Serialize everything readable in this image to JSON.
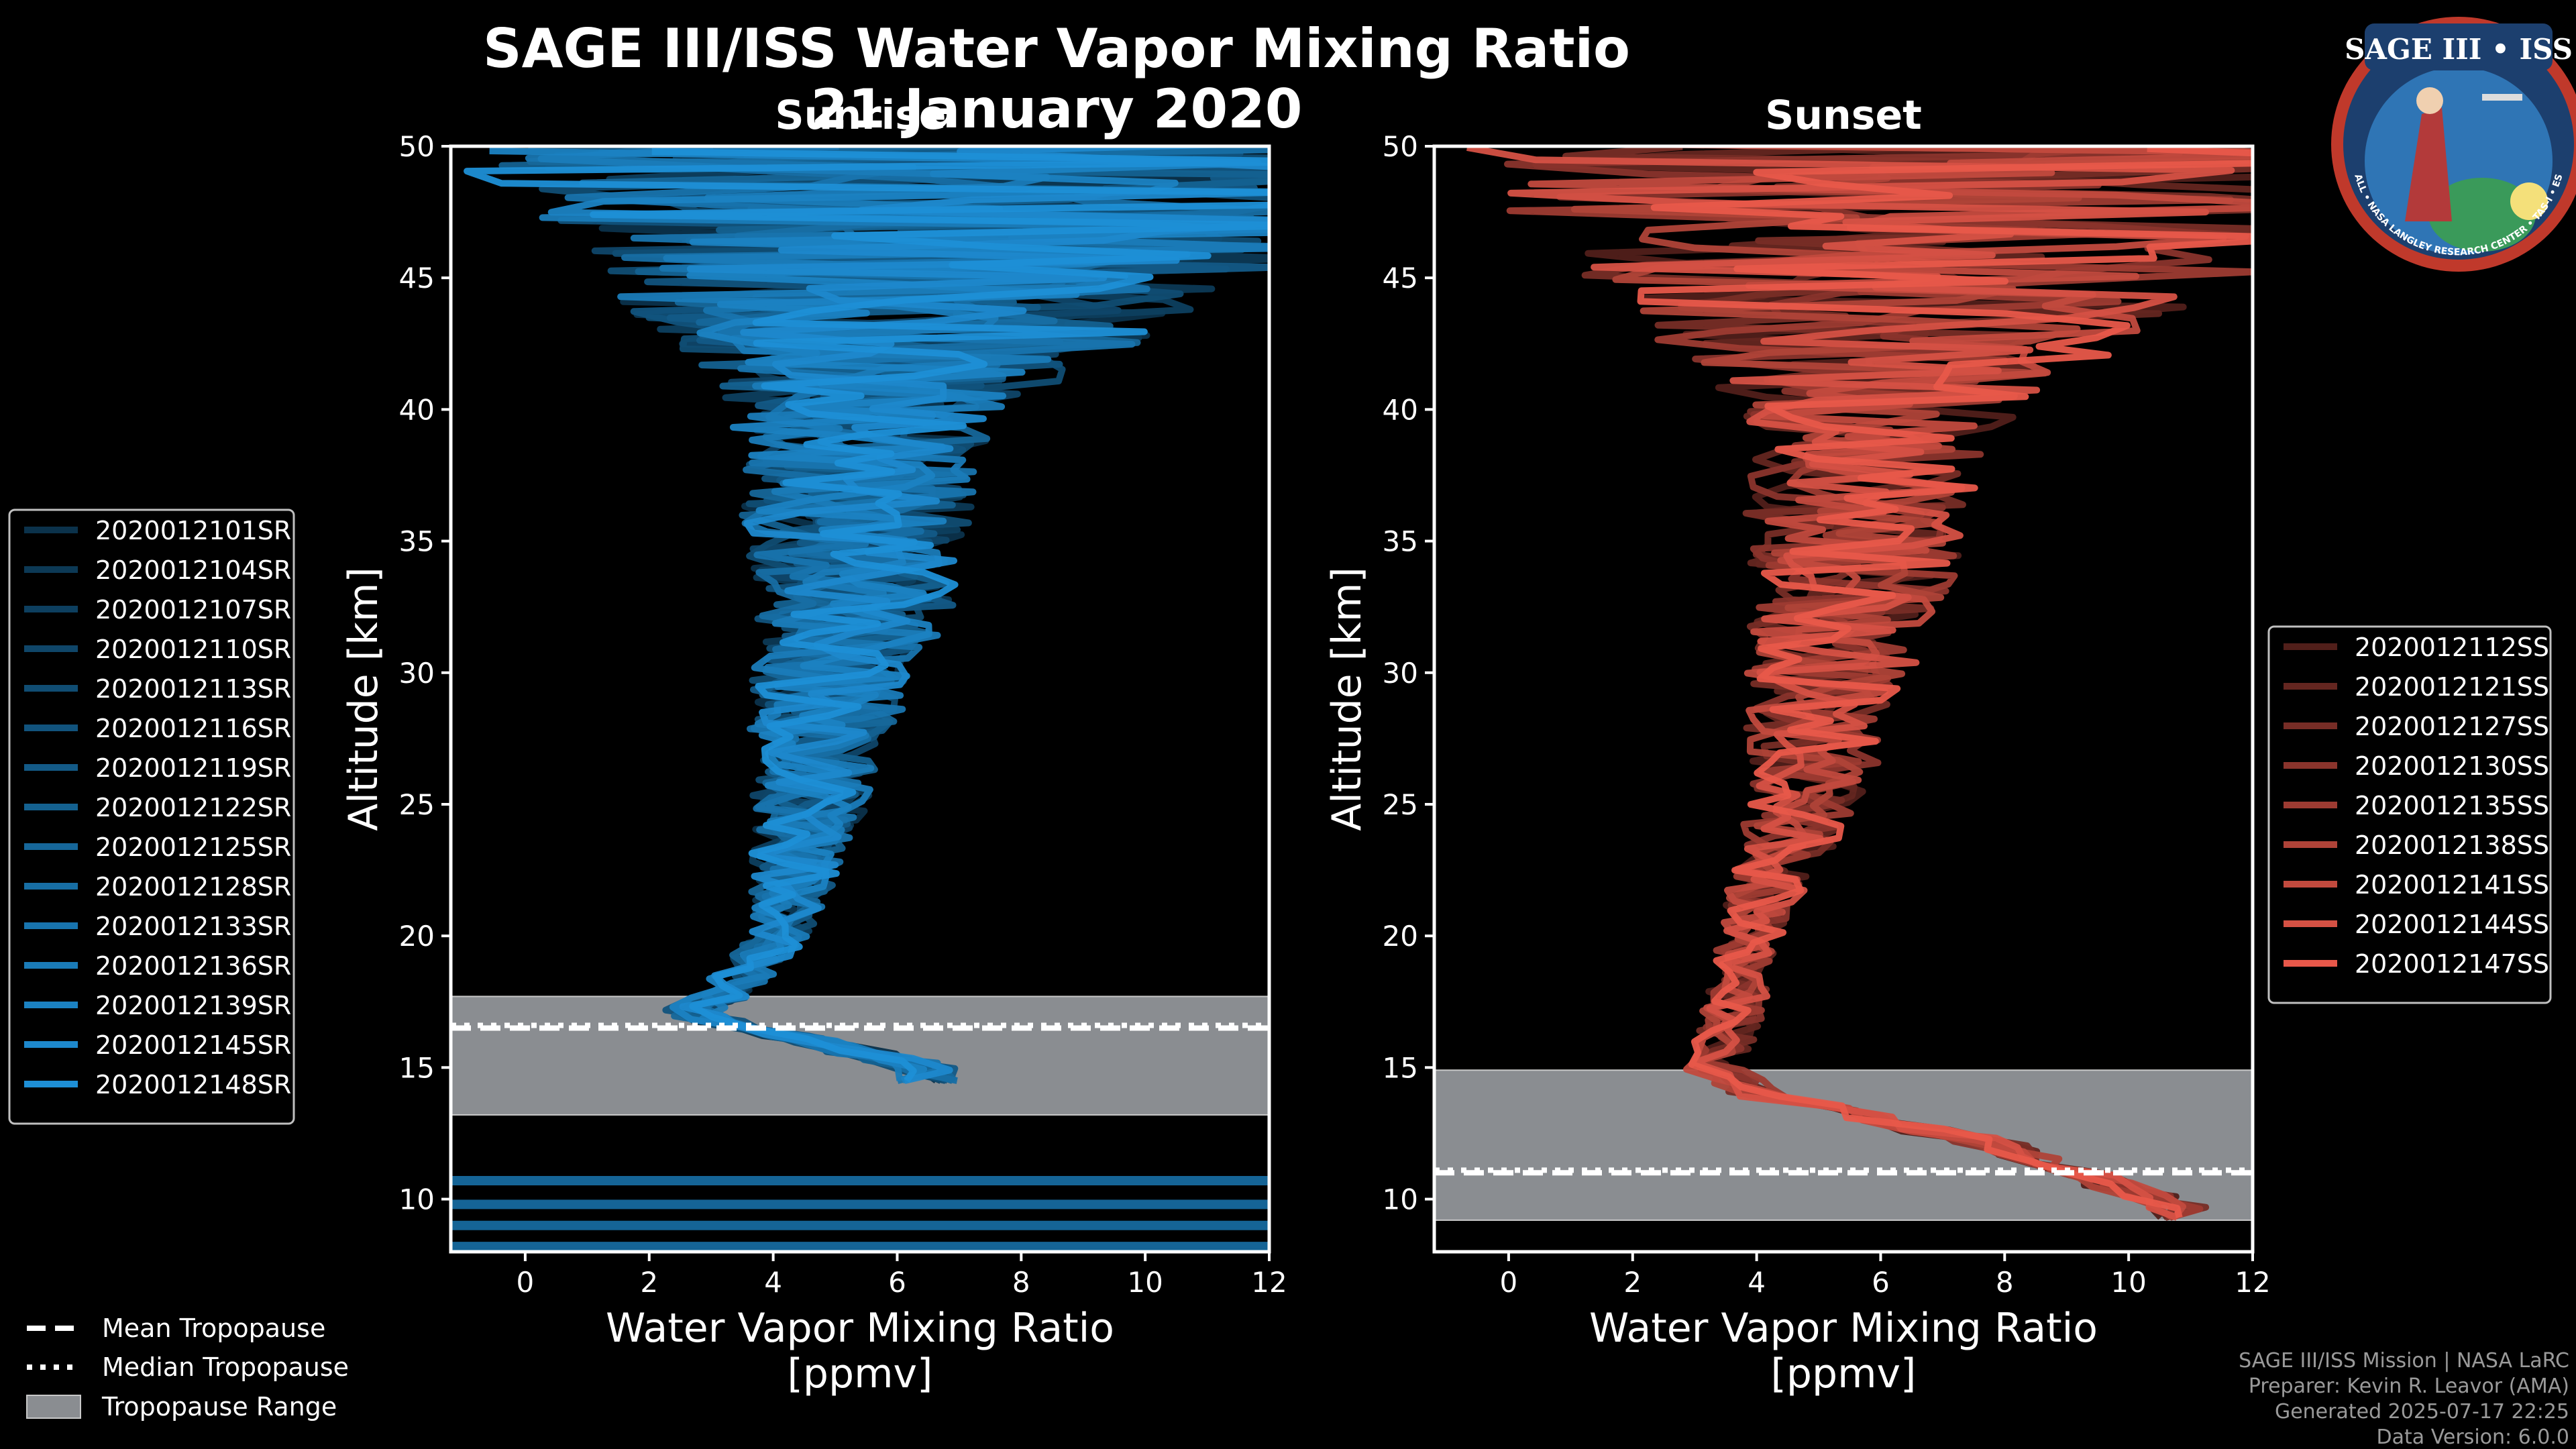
{
  "title": "SAGE III/ISS Water Vapor Mixing Ratio",
  "subtitle_date": "21 January 2020",
  "logo": {
    "name": "SAGE III • ISS",
    "ring_text": "BALL • NASA LANGLEY RESEARCH CENTER • TAS-I • ESA"
  },
  "colors": {
    "background": "#000000",
    "sunrise": "#1e8fd6",
    "sunset": "#e8584a",
    "tropopause_band": "#8a8d91"
  },
  "legend_tropopause": {
    "mean": "Mean Tropopause",
    "median": "Median Tropopause",
    "range": "Tropopause Range"
  },
  "footer": {
    "line1": "SAGE III/ISS Mission | NASA LaRC",
    "line2": "Preparer: Kevin R. Leavor (AMA)",
    "line3": "Generated 2025-07-17 22:25",
    "line4": "Data Version: 6.0.0"
  },
  "chart_data": [
    {
      "type": "line",
      "panel": "sunrise",
      "title": "Sunrise",
      "xlabel": "Water Vapor Mixing Ratio",
      "xlabel2": "[ppmv]",
      "ylabel": "Altitude [km]",
      "xlim": [
        -1.2,
        12
      ],
      "ylim": [
        8,
        50
      ],
      "xticks": [
        0,
        2,
        4,
        6,
        8,
        10,
        12
      ],
      "yticks": [
        10,
        15,
        20,
        25,
        30,
        35,
        40,
        45,
        50
      ],
      "tropopause": {
        "mean": 16.5,
        "median": 16.6,
        "range": [
          13.2,
          17.7
        ]
      },
      "low_altitude_bars": [
        8.2,
        9.0,
        9.8,
        10.7
      ],
      "profile_shape": {
        "altitude_km": [
          15,
          17,
          18,
          20,
          22,
          25,
          28,
          30,
          33,
          35,
          38,
          40,
          42,
          45,
          48,
          50
        ],
        "median_ppmv": [
          6.5,
          2.6,
          3.3,
          4.1,
          4.3,
          4.6,
          4.8,
          5.0,
          5.4,
          5.3,
          5.4,
          5.5,
          6.0,
          6.5,
          7.0,
          7.0
        ]
      },
      "series": [
        {
          "name": "2020012101SR"
        },
        {
          "name": "2020012104SR"
        },
        {
          "name": "2020012107SR"
        },
        {
          "name": "2020012110SR"
        },
        {
          "name": "2020012113SR"
        },
        {
          "name": "2020012116SR"
        },
        {
          "name": "2020012119SR"
        },
        {
          "name": "2020012122SR"
        },
        {
          "name": "2020012125SR"
        },
        {
          "name": "2020012128SR"
        },
        {
          "name": "2020012133SR"
        },
        {
          "name": "2020012136SR"
        },
        {
          "name": "2020012139SR"
        },
        {
          "name": "2020012145SR"
        },
        {
          "name": "2020012148SR"
        }
      ]
    },
    {
      "type": "line",
      "panel": "sunset",
      "title": "Sunset",
      "xlabel": "Water Vapor Mixing Ratio",
      "xlabel2": "[ppmv]",
      "ylabel": "Altitude [km]",
      "xlim": [
        -1.2,
        12
      ],
      "ylim": [
        8,
        50
      ],
      "xticks": [
        0,
        2,
        4,
        6,
        8,
        10,
        12
      ],
      "yticks": [
        10,
        15,
        20,
        25,
        30,
        35,
        40,
        45,
        50
      ],
      "tropopause": {
        "mean": 11.0,
        "median": 11.1,
        "range": [
          9.2,
          14.9
        ]
      },
      "profile_shape": {
        "altitude_km": [
          9.5,
          12,
          14,
          15,
          17,
          20,
          22,
          25,
          28,
          30,
          33,
          35,
          38,
          40,
          42,
          45,
          48,
          50
        ],
        "median_ppmv": [
          11.0,
          8.0,
          4.0,
          3.3,
          3.6,
          3.9,
          4.2,
          4.8,
          5.0,
          5.2,
          5.5,
          5.6,
          5.8,
          6.0,
          6.2,
          6.5,
          7.0,
          7.0
        ]
      },
      "series": [
        {
          "name": "2020012112SS"
        },
        {
          "name": "2020012121SS"
        },
        {
          "name": "2020012127SS"
        },
        {
          "name": "2020012130SS"
        },
        {
          "name": "2020012135SS"
        },
        {
          "name": "2020012138SS"
        },
        {
          "name": "2020012141SS"
        },
        {
          "name": "2020012144SS"
        },
        {
          "name": "2020012147SS"
        }
      ]
    }
  ]
}
